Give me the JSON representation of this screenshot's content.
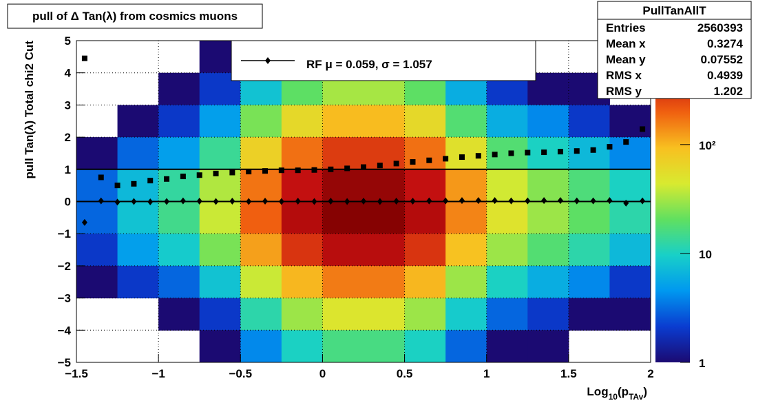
{
  "chart_data": {
    "type": "heatmap",
    "title": "pull of Δ Tan(λ) from cosmics muons",
    "y_label": "pull Tan(λ)  Total chi2 Cut",
    "x_label": [
      {
        "text": "Log"
      },
      {
        "text": "10",
        "sub": true
      },
      {
        "text": "(p"
      },
      {
        "text": "TAv",
        "sub": true
      },
      {
        "text": ")"
      }
    ],
    "xlim": [
      -1.5,
      2
    ],
    "ylim": [
      -5,
      5
    ],
    "xticks": [
      {
        "value": -1.5,
        "label": "−1.5"
      },
      {
        "value": -1,
        "label": "−1"
      },
      {
        "value": -0.5,
        "label": "−0.5"
      },
      0,
      0.5,
      1,
      1.5,
      2
    ],
    "yticks": [
      {
        "value": -5,
        "label": "−5"
      },
      {
        "value": -4,
        "label": "−4"
      },
      {
        "value": -3,
        "label": "−3"
      },
      {
        "value": -2,
        "label": "−2"
      },
      {
        "value": -1,
        "label": "−1"
      },
      0,
      1,
      2,
      3,
      4,
      5
    ],
    "grid": true,
    "x_bins": [
      -1.5,
      -1.25,
      -1,
      -0.75,
      -0.5,
      -0.25,
      0,
      0.25,
      0.5,
      0.75,
      1,
      1.25,
      1.5,
      1.75,
      2
    ],
    "y_bins": [
      5,
      4,
      3,
      2,
      1,
      0,
      -1,
      -2,
      -3,
      -4,
      -5
    ],
    "z": [
      [
        0,
        0,
        0,
        1,
        3,
        8,
        12,
        12,
        8,
        2,
        1,
        0,
        0,
        0
      ],
      [
        0,
        0,
        1,
        2,
        8,
        20,
        32,
        32,
        20,
        6,
        2,
        1,
        1,
        0
      ],
      [
        0,
        1,
        2,
        5,
        24,
        60,
        96,
        96,
        60,
        18,
        6,
        4,
        2,
        1
      ],
      [
        1,
        3,
        5,
        14,
        70,
        175,
        280,
        280,
        175,
        52,
        18,
        10,
        7,
        4
      ],
      [
        3,
        7,
        13,
        34,
        170,
        425,
        680,
        680,
        425,
        128,
        42,
        26,
        17,
        10
      ],
      [
        3,
        8,
        15,
        40,
        200,
        500,
        800,
        800,
        500,
        150,
        50,
        30,
        20,
        12
      ],
      [
        2,
        5,
        9,
        24,
        120,
        300,
        480,
        480,
        300,
        90,
        30,
        18,
        12,
        7
      ],
      [
        1,
        2,
        3,
        8,
        40,
        100,
        160,
        160,
        100,
        30,
        10,
        6,
        4,
        2
      ],
      [
        0,
        0,
        1,
        2,
        12,
        30,
        48,
        48,
        30,
        9,
        3,
        2,
        1,
        1
      ],
      [
        0,
        0,
        0,
        1,
        4,
        10,
        16,
        16,
        10,
        3,
        1,
        1,
        0,
        0
      ]
    ],
    "zlim": [
      1,
      900
    ],
    "zlog": true,
    "zticks": [
      1,
      10,
      {
        "value": 100,
        "label": "10²"
      }
    ],
    "palette": [
      "#1b0a72",
      "#0a3cd0",
      "#0098f0",
      "#18d0c8",
      "#60e060",
      "#d8ea30",
      "#f8c020",
      "#f06010",
      "#c41010",
      "#7a0000"
    ],
    "reference_lines": [
      0,
      1
    ],
    "overlay_x": [
      -1.45,
      -1.35,
      -1.25,
      -1.15,
      -1.05,
      -0.95,
      -0.85,
      -0.75,
      -0.65,
      -0.55,
      -0.45,
      -0.35,
      -0.25,
      -0.15,
      -0.05,
      0.05,
      0.15,
      0.25,
      0.35,
      0.45,
      0.55,
      0.65,
      0.75,
      0.85,
      0.95,
      1.05,
      1.15,
      1.25,
      1.35,
      1.45,
      1.55,
      1.65,
      1.75,
      1.85,
      1.95
    ],
    "overlays": [
      {
        "marker": "square",
        "color": "#000000",
        "values": [
          4.45,
          0.75,
          0.5,
          0.55,
          0.65,
          0.7,
          0.78,
          0.82,
          0.87,
          0.9,
          0.93,
          0.95,
          0.97,
          0.97,
          0.98,
          1.0,
          1.03,
          1.07,
          1.12,
          1.18,
          1.23,
          1.28,
          1.33,
          1.38,
          1.42,
          1.46,
          1.5,
          1.52,
          1.53,
          1.55,
          1.57,
          1.6,
          1.7,
          1.85,
          2.25
        ]
      },
      {
        "marker": "diamond",
        "color": "#000000",
        "values": [
          -0.65,
          0.02,
          -0.02,
          0.0,
          -0.01,
          0.0,
          0.02,
          0.01,
          0.0,
          0.01,
          0.0,
          0.01,
          0.0,
          0.01,
          0.0,
          0.01,
          0.0,
          0.01,
          0.0,
          0.01,
          0.01,
          0.02,
          0.02,
          0.03,
          0.03,
          0.03,
          0.02,
          0.02,
          0.03,
          0.03,
          0.02,
          0.02,
          0.03,
          -0.05,
          0.02
        ]
      }
    ],
    "legend": "RF μ =  0.059, σ =   1.057",
    "stats": {
      "title": "PullTanAllT",
      "rows": [
        {
          "label": "Entries",
          "value": 2560393
        },
        {
          "label": "Mean x",
          "value": 0.3274
        },
        {
          "label": "Mean y",
          "value": 0.07552
        },
        {
          "label": "RMS x",
          "value": 0.4939
        },
        {
          "label": "RMS y",
          "value": 1.202
        }
      ]
    }
  }
}
